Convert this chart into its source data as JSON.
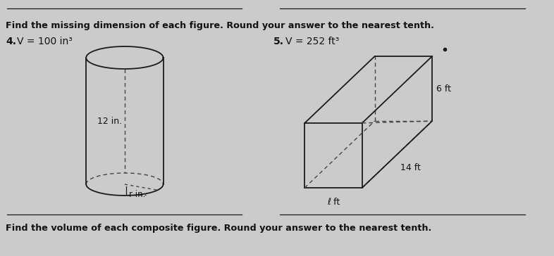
{
  "bg_color": "#cbcbcb",
  "title_text": "Find the missing dimension of each figure. Round your answer to the nearest tenth.",
  "footer_text": "Find the volume of each composite figure. Round your answer to the nearest tenth.",
  "problem4_label": "4.",
  "problem4_eq": "V = 100 in³",
  "problem5_label": "5.",
  "problem5_eq": "V = 252 ft³",
  "cyl_label_h": "12 in.",
  "cyl_label_r": "r in.",
  "box_label_h": "6 ft",
  "box_label_w": "14 ft",
  "box_label_l": "ℓ ft",
  "line_color": "#1a1a1a",
  "dashed_color": "#444444",
  "text_color": "#111111"
}
